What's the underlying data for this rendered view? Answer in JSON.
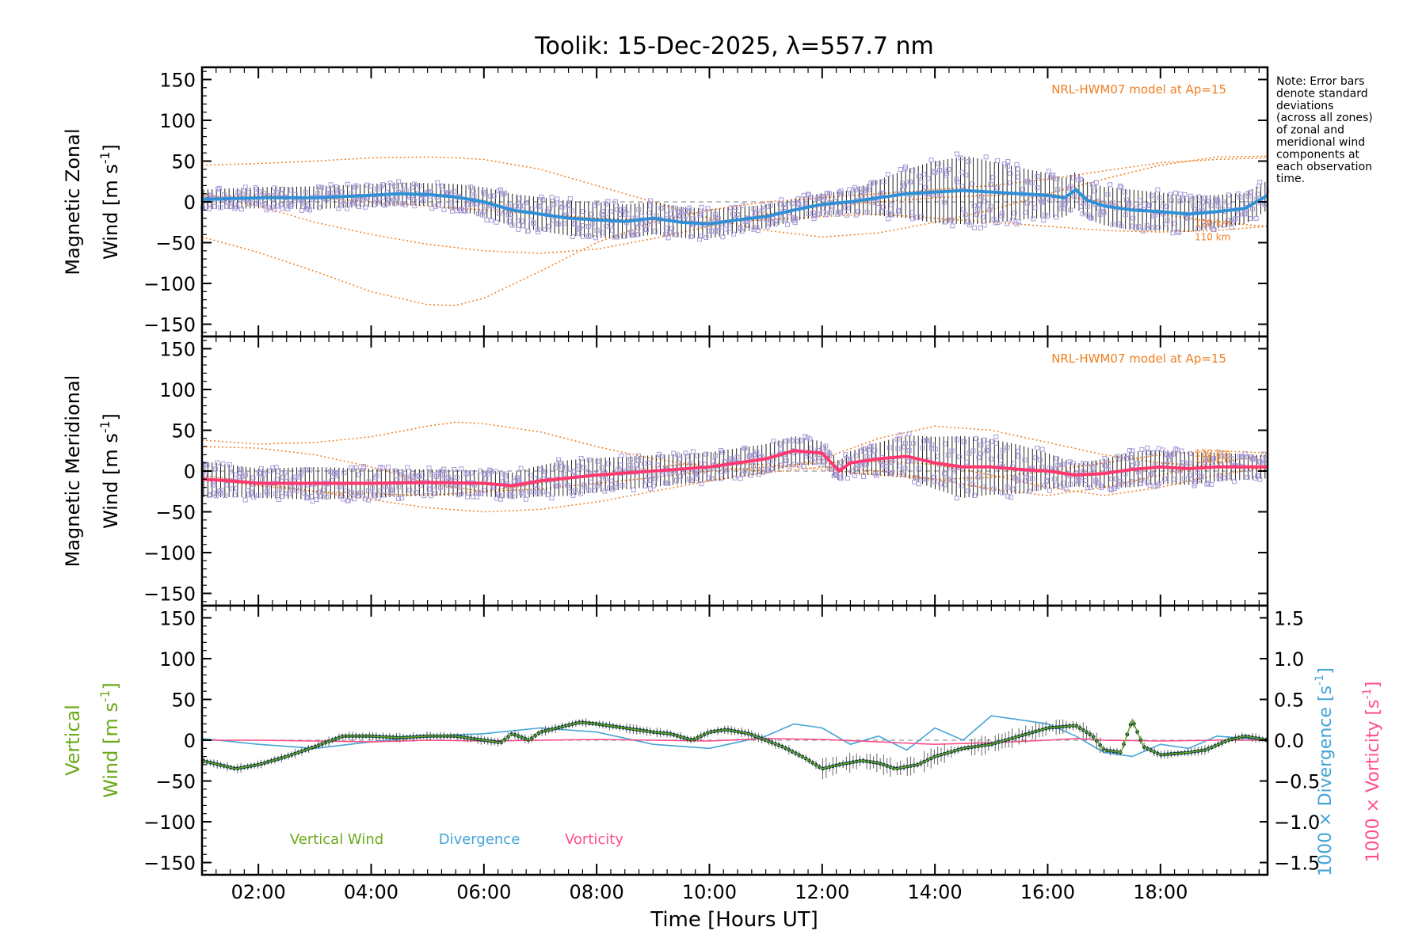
{
  "chart_data": {
    "type": "line",
    "title": "Toolik: 15-Dec-2025, λ=557.7 nm",
    "xlabel": "Time [Hours UT]",
    "xlim": [
      1.0,
      19.9
    ],
    "x_ticks": [
      "02:00",
      "04:00",
      "06:00",
      "08:00",
      "10:00",
      "12:00",
      "14:00",
      "16:00",
      "18:00"
    ],
    "x_tick_values": [
      2,
      4,
      6,
      8,
      10,
      12,
      14,
      16,
      18
    ],
    "note_lines": [
      "Note: Error bars",
      "denote standard",
      "deviations",
      "(across all zones)",
      "of zonal and",
      "meridional wind",
      "components at",
      "each observation",
      "time."
    ],
    "colors": {
      "model": "#f07f22",
      "zonal": "#2f90d8",
      "meridional": "#ff3870",
      "vertical": "#6aaa1a",
      "divergence": "#44a4d8",
      "vorticity": "#ff4d8a",
      "scatter": "#a99ad8",
      "errorbar": "#222222",
      "vertical_dots": "#0d3a48"
    },
    "panels": [
      {
        "name": "zonal",
        "ylabel_line1": "Magnetic Zonal",
        "ylabel_line2": "Wind [m s",
        "ylabel_sup": "-1",
        "ylabel_close": "]",
        "ylim": [
          -165,
          165
        ],
        "y_ticks": [
          "150",
          "100",
          "50",
          "0",
          "−50",
          "−100",
          "−150"
        ],
        "y_tick_values": [
          150,
          100,
          50,
          0,
          -50,
          -100,
          -150
        ],
        "model_label": "NRL-HWM07 model at Ap=15",
        "model_alt_labels": [
          "120 km",
          "110 km"
        ],
        "mean_x": [
          1.0,
          2.0,
          3.0,
          4.0,
          4.5,
          5.0,
          5.5,
          6.0,
          6.5,
          7.0,
          7.5,
          8.0,
          8.5,
          9.0,
          9.5,
          10.0,
          10.5,
          11.0,
          11.5,
          12.0,
          12.5,
          13.0,
          13.5,
          14.0,
          14.5,
          15.0,
          15.5,
          16.0,
          16.3,
          16.5,
          16.7,
          17.0,
          17.5,
          18.0,
          18.5,
          19.0,
          19.5,
          19.9
        ],
        "mean_y": [
          3,
          5,
          5,
          8,
          10,
          9,
          6,
          0,
          -10,
          -15,
          -20,
          -22,
          -24,
          -20,
          -25,
          -27,
          -22,
          -18,
          -10,
          -3,
          0,
          5,
          10,
          12,
          14,
          12,
          10,
          8,
          5,
          15,
          2,
          -5,
          -10,
          -12,
          -15,
          -12,
          -8,
          8
        ],
        "spread_x": [
          1.0,
          3.0,
          5.0,
          6.5,
          8.0,
          10.0,
          11.0,
          12.5,
          14.0,
          14.6,
          15.5,
          16.5,
          17.5,
          18.5,
          19.9
        ],
        "spread_y": [
          12,
          14,
          14,
          20,
          22,
          18,
          14,
          14,
          38,
          42,
          32,
          22,
          25,
          22,
          18
        ],
        "model_curves": [
          {
            "x": [
              1.0,
              2.0,
              3.0,
              4.0,
              5.0,
              5.5,
              6.0,
              7.0,
              8.0,
              9.0,
              10.0,
              11.0,
              12.0,
              13.0,
              14.0,
              15.0,
              16.0,
              17.0,
              18.0,
              19.0,
              19.9
            ],
            "y": [
              45,
              47,
              50,
              54,
              55,
              54,
              52,
              40,
              20,
              0,
              -20,
              -35,
              -43,
              -38,
              -25,
              -10,
              10,
              28,
              45,
              55,
              56
            ]
          },
          {
            "x": [
              1.0,
              2.0,
              3.0,
              4.0,
              5.0,
              5.5,
              6.0,
              7.0,
              8.0,
              9.0,
              10.0,
              11.0,
              12.0,
              13.0,
              14.0,
              15.0,
              16.0,
              17.0,
              18.0,
              19.0,
              19.9
            ],
            "y": [
              -43,
              -62,
              -85,
              -110,
              -126,
              -127,
              -118,
              -85,
              -50,
              -25,
              -10,
              0,
              5,
              10,
              15,
              20,
              28,
              38,
              48,
              52,
              54
            ]
          },
          {
            "x": [
              1.0,
              2.0,
              3.0,
              4.0,
              5.0,
              6.0,
              7.0,
              8.0,
              9.0,
              10.0,
              11.0,
              12.0,
              13.0,
              14.0,
              15.0,
              16.0,
              17.0,
              18.0,
              19.0,
              19.9
            ],
            "y": [
              10,
              -5,
              -25,
              -40,
              -52,
              -60,
              -63,
              -58,
              -45,
              -30,
              -15,
              -5,
              0,
              5,
              8,
              10,
              0,
              -15,
              -25,
              -30
            ]
          },
          {
            "x": [
              1.0,
              2.0,
              3.0,
              4.0,
              5.0,
              6.0,
              7.0,
              8.0,
              9.0,
              10.0,
              11.0,
              12.0,
              13.0,
              14.0,
              15.0,
              16.0,
              17.0,
              18.0,
              19.0,
              19.9
            ],
            "y": [
              5,
              8,
              5,
              0,
              -5,
              -10,
              -15,
              -20,
              -22,
              -25,
              -22,
              -18,
              -15,
              -20,
              -25,
              -30,
              -35,
              -37,
              -35,
              -30
            ]
          }
        ]
      },
      {
        "name": "meridional",
        "ylabel_line1": "Magnetic Meridional",
        "ylabel_line2": "Wind [m s",
        "ylabel_sup": "-1",
        "ylabel_close": "]",
        "ylim": [
          -165,
          165
        ],
        "y_ticks": [
          "150",
          "100",
          "50",
          "0",
          "−50",
          "−100",
          "−150"
        ],
        "y_tick_values": [
          150,
          100,
          50,
          0,
          -50,
          -100,
          -150
        ],
        "model_label": "NRL-HWM07 model at Ap=15",
        "model_alt_labels": [
          "120 km",
          "110 km"
        ],
        "mean_x": [
          1.0,
          1.5,
          2.0,
          3.0,
          4.0,
          5.0,
          6.0,
          6.5,
          7.0,
          8.0,
          9.0,
          10.0,
          10.5,
          11.0,
          11.5,
          12.0,
          12.3,
          12.5,
          13.0,
          13.5,
          14.0,
          14.5,
          15.0,
          15.5,
          16.0,
          16.5,
          17.0,
          17.5,
          18.0,
          18.5,
          19.0,
          19.9
        ],
        "mean_y": [
          -10,
          -12,
          -15,
          -15,
          -15,
          -14,
          -15,
          -18,
          -12,
          -5,
          0,
          5,
          10,
          15,
          25,
          22,
          0,
          10,
          15,
          18,
          10,
          5,
          5,
          2,
          0,
          -5,
          -3,
          2,
          5,
          3,
          5,
          5
        ],
        "spread_x": [
          1.0,
          2.0,
          3.0,
          5.0,
          6.5,
          7.5,
          8.5,
          10.0,
          11.5,
          12.3,
          13.0,
          14.5,
          15.5,
          16.5,
          17.5,
          18.5,
          19.9
        ],
        "spread_y": [
          22,
          18,
          20,
          16,
          16,
          22,
          20,
          18,
          18,
          12,
          20,
          38,
          30,
          14,
          22,
          20,
          14
        ],
        "model_curves": [
          {
            "x": [
              1.0,
              2.0,
              3.0,
              4.0,
              5.0,
              5.5,
              6.0,
              7.0,
              8.0,
              9.0,
              10.0,
              11.0,
              12.0,
              13.0,
              14.0,
              15.0,
              16.0,
              17.0,
              18.0,
              19.0,
              19.9
            ],
            "y": [
              38,
              33,
              35,
              42,
              55,
              60,
              58,
              48,
              30,
              15,
              5,
              0,
              15,
              40,
              55,
              50,
              35,
              20,
              10,
              5,
              2
            ]
          },
          {
            "x": [
              1.0,
              2.0,
              3.0,
              4.0,
              5.0,
              6.0,
              7.0,
              8.0,
              9.0,
              10.0,
              11.0,
              12.0,
              13.0,
              14.0,
              15.0,
              16.0,
              17.0,
              18.0,
              19.0,
              19.9
            ],
            "y": [
              30,
              28,
              20,
              5,
              -15,
              -25,
              -22,
              -15,
              -8,
              0,
              5,
              10,
              12,
              8,
              -5,
              -20,
              -30,
              -20,
              -5,
              5
            ]
          },
          {
            "x": [
              1.0,
              2.0,
              3.0,
              4.0,
              5.0,
              6.0,
              7.0,
              8.0,
              9.0,
              10.0,
              11.0,
              12.0,
              13.0,
              14.0,
              15.0,
              16.0,
              17.0,
              18.0,
              19.0,
              19.9
            ],
            "y": [
              -5,
              -15,
              -25,
              -35,
              -45,
              -50,
              -47,
              -38,
              -25,
              -12,
              -2,
              5,
              0,
              -10,
              -22,
              -30,
              -20,
              -5,
              10,
              20
            ]
          },
          {
            "x": [
              1.0,
              2.0,
              3.0,
              4.0,
              5.0,
              6.0,
              7.0,
              8.0,
              9.0,
              10.0,
              11.0,
              12.0,
              13.0,
              14.0,
              15.0,
              16.0,
              17.0,
              18.0,
              19.0,
              19.9
            ],
            "y": [
              -10,
              -18,
              -25,
              -28,
              -30,
              -25,
              -15,
              -5,
              5,
              10,
              8,
              2,
              -5,
              -10,
              -8,
              0,
              10,
              20,
              25,
              22
            ]
          }
        ]
      },
      {
        "name": "vertical",
        "ylabel_line1": "Vertical",
        "ylabel_line2": "Wind [m s",
        "ylabel_sup": "-1",
        "ylabel_close": "]",
        "ylim": [
          -165,
          165
        ],
        "y_ticks": [
          "150",
          "100",
          "50",
          "0",
          "−50",
          "−100",
          "−150"
        ],
        "y_tick_values": [
          150,
          100,
          50,
          0,
          -50,
          -100,
          -150
        ],
        "right_ylim": [
          -1.65,
          1.65
        ],
        "right_ticks": [
          "1.5",
          "1.0",
          "0.5",
          "0.0",
          "−0.5",
          "−1.0",
          "−1.5"
        ],
        "right_tick_values": [
          1.5,
          1.0,
          0.5,
          0.0,
          -0.5,
          -1.0,
          -1.5
        ],
        "right_label_div": "1000 × Divergence [s",
        "right_label_vort": "1000 × Vorticity [s",
        "right_label_sup": "-1",
        "right_label_close": "]",
        "legend": [
          "Vertical Wind",
          "Divergence",
          "Vorticity"
        ],
        "vertical_x": [
          1.0,
          1.3,
          1.6,
          2.0,
          2.5,
          3.0,
          3.5,
          4.0,
          4.5,
          5.0,
          5.5,
          6.0,
          6.3,
          6.5,
          6.8,
          7.0,
          7.3,
          7.7,
          8.0,
          8.5,
          9.0,
          9.3,
          9.7,
          10.0,
          10.3,
          10.7,
          11.0,
          11.3,
          11.7,
          12.0,
          12.3,
          12.7,
          13.0,
          13.3,
          13.7,
          14.0,
          14.5,
          15.0,
          15.5,
          16.0,
          16.5,
          16.8,
          17.0,
          17.3,
          17.5,
          17.7,
          18.0,
          18.5,
          18.8,
          19.2,
          19.5,
          19.9
        ],
        "vertical_y": [
          -25,
          -30,
          -35,
          -30,
          -20,
          -8,
          5,
          5,
          3,
          5,
          5,
          0,
          -3,
          8,
          0,
          10,
          15,
          22,
          20,
          15,
          10,
          8,
          0,
          10,
          13,
          8,
          0,
          -8,
          -22,
          -35,
          -30,
          -25,
          -28,
          -35,
          -30,
          -20,
          -10,
          -5,
          5,
          15,
          18,
          5,
          -12,
          -15,
          25,
          -8,
          -18,
          -15,
          -12,
          0,
          5,
          0
        ],
        "divergence_x": [
          1.0,
          2.0,
          3.0,
          4.0,
          5.0,
          6.0,
          7.0,
          8.0,
          9.0,
          10.0,
          11.0,
          11.5,
          12.0,
          12.5,
          13.0,
          13.5,
          14.0,
          14.5,
          15.0,
          15.5,
          16.0,
          16.5,
          17.0,
          17.5,
          18.0,
          18.5,
          19.0,
          19.9
        ],
        "divergence_y": [
          0.02,
          -0.05,
          -0.1,
          -0.02,
          0.05,
          0.08,
          0.15,
          0.1,
          -0.05,
          -0.1,
          0.05,
          0.2,
          0.15,
          -0.05,
          0.05,
          -0.12,
          0.15,
          0.0,
          0.3,
          0.25,
          0.2,
          0.05,
          -0.15,
          -0.2,
          -0.05,
          -0.1,
          0.05,
          0.0
        ],
        "vorticity_x": [
          1.0,
          2.0,
          3.0,
          4.0,
          5.0,
          6.0,
          7.0,
          8.0,
          9.0,
          10.0,
          11.0,
          12.0,
          13.0,
          14.0,
          15.0,
          16.0,
          16.5,
          17.0,
          18.0,
          19.0,
          19.9
        ],
        "vorticity_y": [
          0.0,
          0.0,
          -0.01,
          -0.02,
          0.0,
          -0.01,
          0.0,
          0.01,
          0.0,
          -0.01,
          0.02,
          0.01,
          -0.02,
          -0.05,
          -0.03,
          0.0,
          0.02,
          0.0,
          -0.01,
          0.0,
          0.0
        ]
      }
    ]
  }
}
